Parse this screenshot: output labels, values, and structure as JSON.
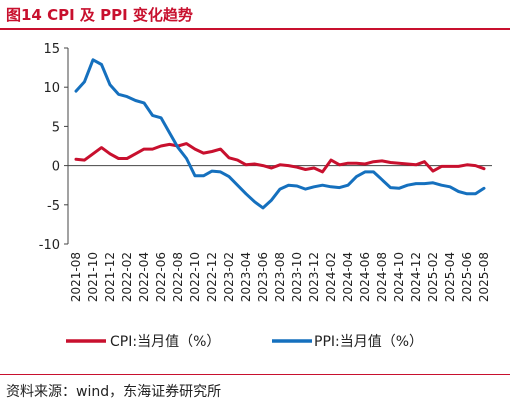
{
  "header": {
    "title": "图14  CPI 及 PPI 变化趋势"
  },
  "footer": {
    "source": "资料来源：wind，东海证券研究所"
  },
  "chart_data": {
    "type": "line",
    "title": "图14  CPI 及 PPI 变化趋势",
    "ylim": [
      -10,
      15
    ],
    "yticks": [
      -10,
      -5,
      0,
      5,
      10,
      15
    ],
    "grid": false,
    "legend_position": "bottom",
    "x": [
      "2021-08",
      "2021-09",
      "2021-10",
      "2021-11",
      "2021-12",
      "2022-01",
      "2022-02",
      "2022-03",
      "2022-04",
      "2022-05",
      "2022-06",
      "2022-07",
      "2022-08",
      "2022-09",
      "2022-10",
      "2022-11",
      "2022-12",
      "2023-01",
      "2023-02",
      "2023-03",
      "2023-04",
      "2023-05",
      "2023-06",
      "2023-07",
      "2023-08",
      "2023-09",
      "2023-10",
      "2023-11",
      "2023-12",
      "2024-01",
      "2024-02",
      "2024-03",
      "2024-04",
      "2024-05",
      "2024-06",
      "2024-07",
      "2024-08",
      "2024-09",
      "2024-10",
      "2024-11",
      "2024-12",
      "2025-01",
      "2025-02",
      "2025-03",
      "2025-04",
      "2025-05",
      "2025-06",
      "2025-07",
      "2025-08"
    ],
    "x_tick_labels": [
      "2021-08",
      "2021-10",
      "2021-12",
      "2022-02",
      "2022-04",
      "2022-06",
      "2022-08",
      "2022-10",
      "2022-12",
      "2023-02",
      "2023-04",
      "2023-06",
      "2023-08",
      "2023-10",
      "2023-12",
      "2024-02",
      "2024-04",
      "2024-06",
      "2024-08",
      "2024-10",
      "2024-12",
      "2025-02",
      "2025-04",
      "2025-06",
      "2025-08"
    ],
    "series": [
      {
        "name": "CPI:当月值（%）",
        "color": "#c8102e",
        "values": [
          0.8,
          0.7,
          1.5,
          2.3,
          1.5,
          0.9,
          0.9,
          1.5,
          2.1,
          2.1,
          2.5,
          2.7,
          2.5,
          2.8,
          2.1,
          1.6,
          1.8,
          2.1,
          1.0,
          0.7,
          0.1,
          0.2,
          0.0,
          -0.3,
          0.1,
          0.0,
          -0.2,
          -0.5,
          -0.3,
          -0.8,
          0.7,
          0.1,
          0.3,
          0.3,
          0.2,
          0.5,
          0.6,
          0.4,
          0.3,
          0.2,
          0.1,
          0.5,
          -0.7,
          -0.1,
          -0.1,
          -0.1,
          0.1,
          0.0,
          -0.4
        ]
      },
      {
        "name": "PPI:当月值（%）",
        "color": "#1570be",
        "values": [
          9.5,
          10.7,
          13.5,
          12.9,
          10.3,
          9.1,
          8.8,
          8.3,
          8.0,
          6.4,
          6.1,
          4.2,
          2.3,
          0.9,
          -1.3,
          -1.3,
          -0.7,
          -0.8,
          -1.4,
          -2.5,
          -3.6,
          -4.6,
          -5.4,
          -4.4,
          -3.0,
          -2.5,
          -2.6,
          -3.0,
          -2.7,
          -2.5,
          -2.7,
          -2.8,
          -2.5,
          -1.4,
          -0.8,
          -0.8,
          -1.8,
          -2.8,
          -2.9,
          -2.5,
          -2.3,
          -2.3,
          -2.2,
          -2.5,
          -2.7,
          -3.3,
          -3.6,
          -3.6,
          -2.9
        ]
      }
    ]
  }
}
